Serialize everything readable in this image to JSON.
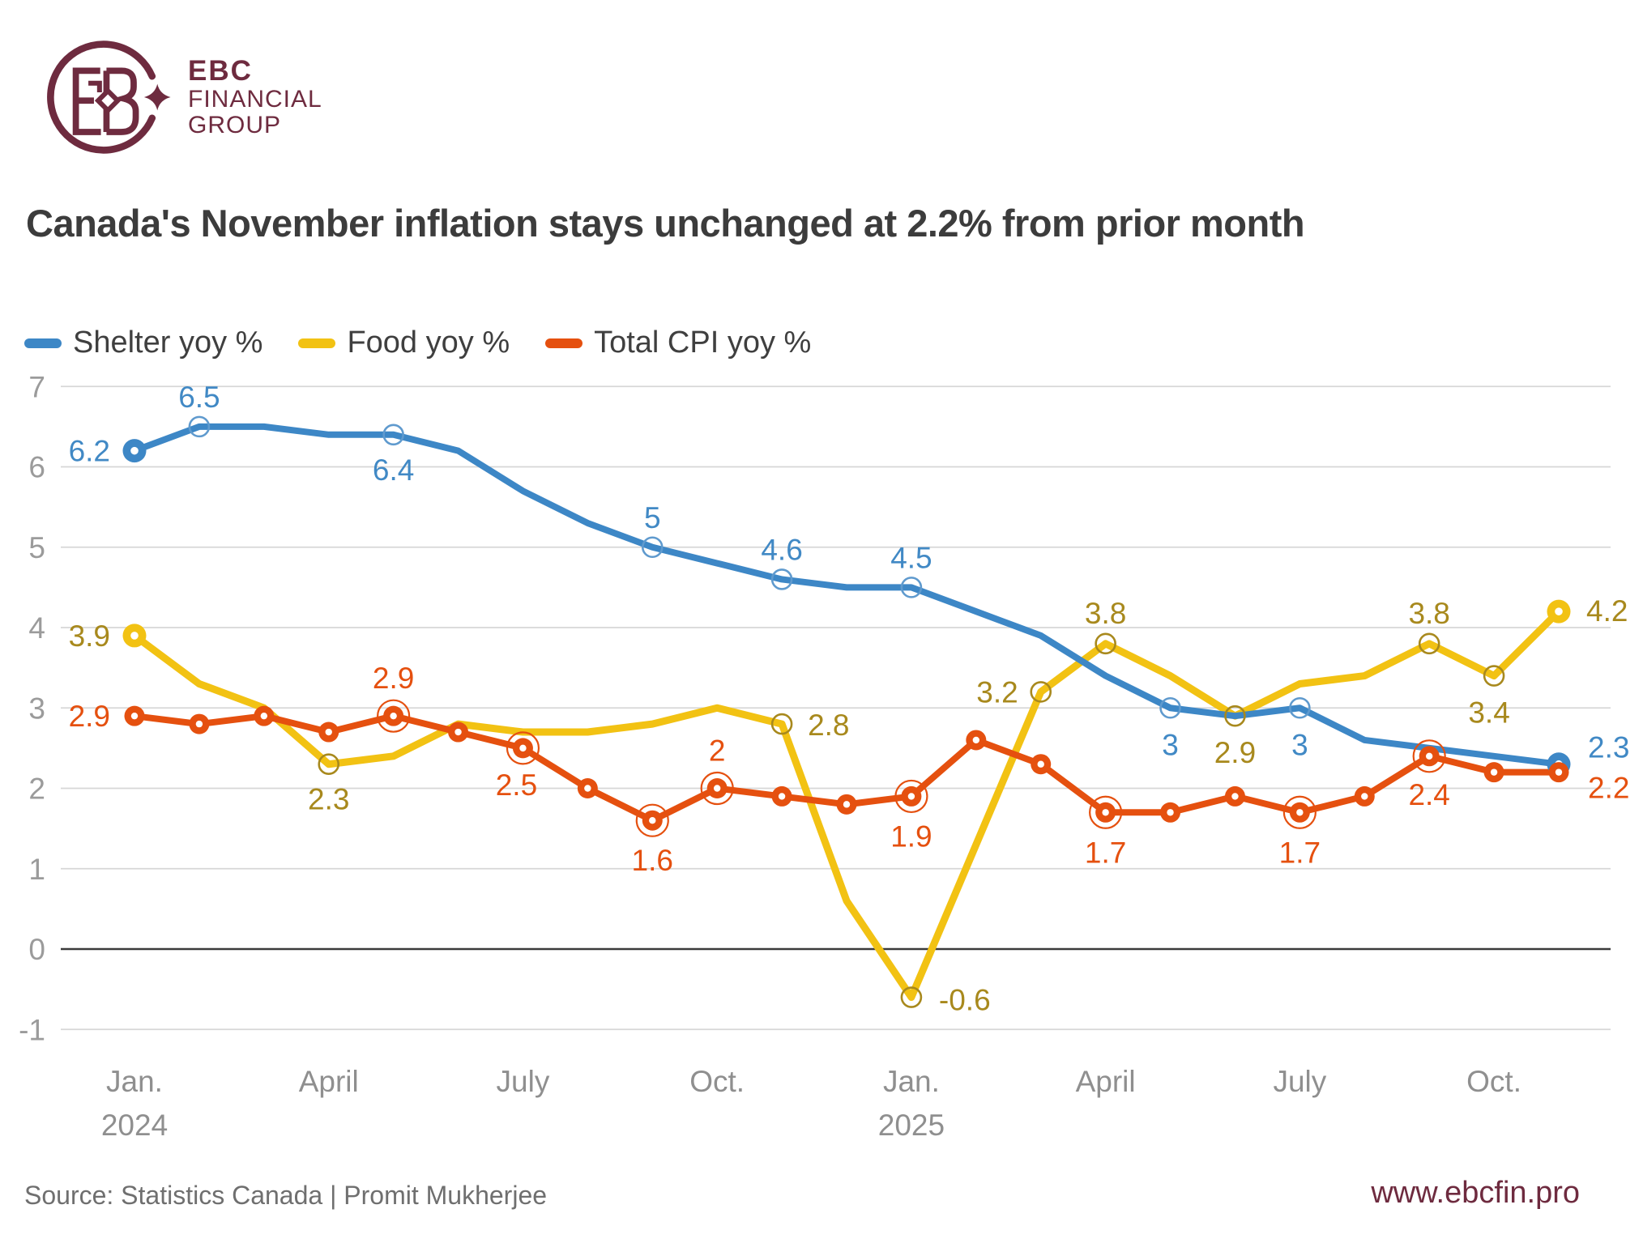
{
  "logo": {
    "lines": [
      "EBC",
      "FINANCIAL",
      "GROUP"
    ],
    "color": "#6e2b3f"
  },
  "title": {
    "text": "Canada's November inflation stays unchanged at 2.2% from prior month"
  },
  "footer": {
    "source": "Source: Statistics Canada | Promit Mukherjee",
    "site": "www.ebcfin.pro",
    "site_color": "#6e2b3f"
  },
  "chart_data": {
    "type": "line",
    "title": "Canada's November inflation stays unchanged at 2.2% from prior month",
    "xlabel": "",
    "ylabel": "",
    "ylim": [
      -1,
      7
    ],
    "yticks": [
      7,
      6,
      5,
      4,
      3,
      2,
      1,
      0,
      -1
    ],
    "grid": true,
    "legend_position": "top-left",
    "categories": [
      "Jan. 2024",
      "Feb. 2024",
      "Mar. 2024",
      "Apr. 2024",
      "May 2024",
      "Jun. 2024",
      "Jul. 2024",
      "Aug. 2024",
      "Sep. 2024",
      "Oct. 2024",
      "Nov. 2024",
      "Dec. 2024",
      "Jan. 2025",
      "Feb. 2025",
      "Mar. 2025",
      "Apr. 2025",
      "May 2025",
      "Jun. 2025",
      "Jul. 2025",
      "Aug. 2025",
      "Sep. 2025",
      "Oct. 2025",
      "Nov. 2025"
    ],
    "x_ticks": [
      {
        "index": 0,
        "label": "Jan.",
        "year": "2024"
      },
      {
        "index": 3,
        "label": "April"
      },
      {
        "index": 6,
        "label": "July"
      },
      {
        "index": 9,
        "label": "Oct."
      },
      {
        "index": 12,
        "label": "Jan.",
        "year": "2025"
      },
      {
        "index": 15,
        "label": "April"
      },
      {
        "index": 18,
        "label": "July"
      },
      {
        "index": 21,
        "label": "Oct."
      }
    ],
    "series": [
      {
        "name": "Shelter yoy %",
        "color": "#3d87c6",
        "marker_stroke": "#5f9ace",
        "label_color": "#4189c5",
        "line_width": 8,
        "values": [
          6.2,
          6.5,
          6.5,
          6.4,
          6.4,
          6.2,
          5.7,
          5.3,
          5.0,
          4.8,
          4.6,
          4.5,
          4.5,
          4.2,
          3.9,
          3.4,
          3.0,
          2.9,
          3.0,
          2.6,
          2.5,
          2.4,
          2.3
        ],
        "labels": {
          "0": "6.2",
          "1": "6.5",
          "4": "6.4",
          "8": "5",
          "10": "4.6",
          "12": "4.5",
          "16": "3",
          "18": "3",
          "22": "2.3"
        },
        "open_circle_points": [
          1,
          4,
          8,
          10,
          12,
          16,
          18
        ],
        "donut_points": [
          0,
          22
        ]
      },
      {
        "name": "Food yoy %",
        "color": "#f2c213",
        "marker_stroke": "#a8891d",
        "label_color": "#a8891d",
        "line_width": 9,
        "values": [
          3.9,
          3.3,
          3.0,
          2.3,
          2.4,
          2.8,
          2.7,
          2.7,
          2.8,
          3.0,
          2.8,
          0.6,
          -0.6,
          1.3,
          3.2,
          3.8,
          3.4,
          2.9,
          3.3,
          3.4,
          3.8,
          3.4,
          4.2
        ],
        "labels": {
          "0": "3.9",
          "3": "2.3",
          "10": "2.8",
          "12": "-0.6",
          "14": "3.2",
          "15": "3.8",
          "17": "2.9",
          "20": "3.8",
          "21": "3.4",
          "22": "4.2"
        },
        "open_circle_points": [
          3,
          10,
          12,
          14,
          15,
          17,
          20,
          21
        ],
        "donut_points": [
          0,
          22
        ]
      },
      {
        "name": "Total CPI yoy %",
        "color": "#e5500f",
        "marker_stroke": "#e5500f",
        "label_color": "#e5500f",
        "line_width": 8,
        "values": [
          2.9,
          2.8,
          2.9,
          2.7,
          2.9,
          2.7,
          2.5,
          2.0,
          1.6,
          2.0,
          1.9,
          1.8,
          1.9,
          2.6,
          2.3,
          1.7,
          1.7,
          1.9,
          1.7,
          1.9,
          2.4,
          2.2,
          2.2
        ],
        "labels": {
          "0": "2.9",
          "4": "2.9",
          "6": "2.5",
          "8": "1.6",
          "9": "2",
          "12": "1.9",
          "15": "1.7",
          "18": "1.7",
          "20": "2.4",
          "22": "2.2"
        },
        "donut_points": "all",
        "ring_points": [
          4,
          6,
          8,
          9,
          12,
          15,
          18,
          20
        ]
      }
    ],
    "axis_colors": {
      "tick_label": "#9b9b9b",
      "x_label": "#8f8f8f",
      "gridline": "#d7d7d7",
      "zero_line": "#3b3b3b"
    }
  }
}
